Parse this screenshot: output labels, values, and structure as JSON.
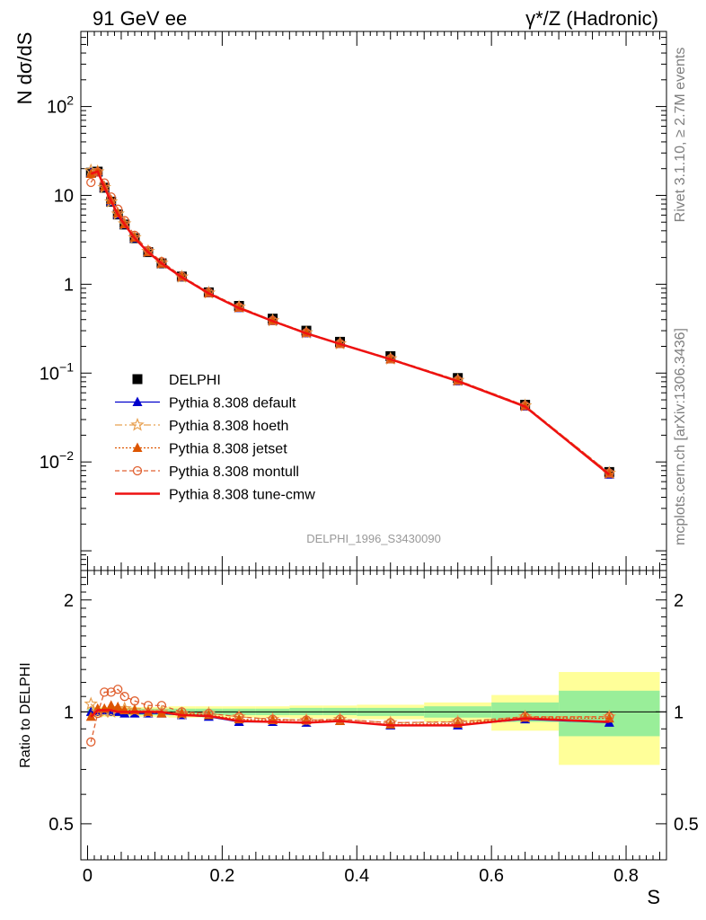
{
  "header": {
    "left_title": "91 GeV ee",
    "right_title": "γ*/Z (Hadronic)"
  },
  "side": {
    "rivet": "Rivet 3.1.10, ≥ 2.7M events",
    "mcplots": "mcplots.cern.ch [arXiv:1306.3436]"
  },
  "watermark": "DELPHI_1996_S3430090",
  "chart_data": [
    {
      "type": "line",
      "panel": "main",
      "ylabel": "N dσ/dS",
      "xlabel": "",
      "yscale": "log",
      "ylim": [
        0.0006,
        700
      ],
      "xlim": [
        -0.01,
        0.86
      ],
      "y_tick_labels": [
        "10^-2",
        "10^-1",
        "1",
        "10",
        "10^2"
      ],
      "legend_position": "middle-left",
      "x": [
        0.005,
        0.015,
        0.025,
        0.035,
        0.045,
        0.055,
        0.07,
        0.09,
        0.11,
        0.14,
        0.18,
        0.225,
        0.275,
        0.325,
        0.375,
        0.45,
        0.55,
        0.65,
        0.775
      ],
      "series": [
        {
          "name": "DELPHI",
          "color": "#000000",
          "marker": "square",
          "values": [
            18,
            18.5,
            12.2,
            8.5,
            6.1,
            4.7,
            3.3,
            2.3,
            1.72,
            1.22,
            0.81,
            0.57,
            0.41,
            0.3,
            0.225,
            0.155,
            0.088,
            0.044,
            0.0077
          ]
        },
        {
          "name": "Pythia 8.308 default",
          "color": "#0000cc",
          "marker": "triangle",
          "dash": "",
          "values": [
            18,
            18.5,
            12.3,
            8.5,
            6.1,
            4.7,
            3.3,
            2.3,
            1.7,
            1.2,
            0.79,
            0.54,
            0.385,
            0.28,
            0.213,
            0.143,
            0.081,
            0.042,
            0.0072
          ]
        },
        {
          "name": "Pythia 8.308 hoeth",
          "color": "#e8a050",
          "marker": "star",
          "dash": "8,3,2,3",
          "values": [
            19,
            18.5,
            12.3,
            8.5,
            6.2,
            4.8,
            3.35,
            2.35,
            1.73,
            1.21,
            0.8,
            0.555,
            0.39,
            0.285,
            0.215,
            0.145,
            0.083,
            0.043,
            0.0075
          ]
        },
        {
          "name": "Pythia 8.308 jetset",
          "color": "#dd5500",
          "marker": "filled-triangle",
          "dash": "2,2",
          "values": [
            17.5,
            18.8,
            12.5,
            8.9,
            6.3,
            4.75,
            3.35,
            2.3,
            1.71,
            1.21,
            0.795,
            0.545,
            0.39,
            0.285,
            0.213,
            0.143,
            0.082,
            0.0425,
            0.0074
          ]
        },
        {
          "name": "Pythia 8.308 montull",
          "color": "#e06030",
          "marker": "circle",
          "dash": "5,3",
          "values": [
            14,
            18.3,
            13.8,
            9.6,
            7,
            5.2,
            3.55,
            2.4,
            1.8,
            1.23,
            0.81,
            0.555,
            0.39,
            0.285,
            0.215,
            0.145,
            0.083,
            0.043,
            0.0075
          ]
        },
        {
          "name": "Pythia 8.308 tune-cmw",
          "color": "#ee1111",
          "marker": "line",
          "dash": "",
          "values": [
            17.5,
            18.6,
            12.3,
            8.6,
            6.1,
            4.7,
            3.3,
            2.3,
            1.72,
            1.2,
            0.79,
            0.54,
            0.385,
            0.28,
            0.213,
            0.143,
            0.081,
            0.042,
            0.0072
          ]
        }
      ]
    },
    {
      "type": "line",
      "panel": "ratio",
      "ylabel": "Ratio to DELPHI",
      "xlabel": "S",
      "yscale": "log",
      "ylim": [
        0.4,
        2.4
      ],
      "xlim": [
        -0.01,
        0.86
      ],
      "y_tick_labels": [
        "0.5",
        "1",
        "2"
      ],
      "x_tick_labels": [
        "0",
        "0.2",
        "0.4",
        "0.6",
        "0.8"
      ],
      "x_ticks": [
        0,
        0.2,
        0.4,
        0.6,
        0.8
      ],
      "reference": 1,
      "bands": [
        {
          "x0": 0.0,
          "x1": 0.01,
          "stat_lo": 0.98,
          "stat_hi": 1.02,
          "tot_lo": 0.97,
          "tot_hi": 1.03
        },
        {
          "x0": 0.01,
          "x1": 0.02,
          "stat_lo": 0.98,
          "stat_hi": 1.02,
          "tot_lo": 0.97,
          "tot_hi": 1.03
        },
        {
          "x0": 0.02,
          "x1": 0.03,
          "stat_lo": 0.98,
          "stat_hi": 1.02,
          "tot_lo": 0.97,
          "tot_hi": 1.03
        },
        {
          "x0": 0.03,
          "x1": 0.04,
          "stat_lo": 0.98,
          "stat_hi": 1.02,
          "tot_lo": 0.97,
          "tot_hi": 1.03
        },
        {
          "x0": 0.04,
          "x1": 0.05,
          "stat_lo": 0.98,
          "stat_hi": 1.02,
          "tot_lo": 0.97,
          "tot_hi": 1.03
        },
        {
          "x0": 0.05,
          "x1": 0.06,
          "stat_lo": 0.98,
          "stat_hi": 1.02,
          "tot_lo": 0.97,
          "tot_hi": 1.03
        },
        {
          "x0": 0.06,
          "x1": 0.08,
          "stat_lo": 0.98,
          "stat_hi": 1.02,
          "tot_lo": 0.97,
          "tot_hi": 1.03
        },
        {
          "x0": 0.08,
          "x1": 0.1,
          "stat_lo": 0.98,
          "stat_hi": 1.02,
          "tot_lo": 0.97,
          "tot_hi": 1.03
        },
        {
          "x0": 0.1,
          "x1": 0.12,
          "stat_lo": 0.98,
          "stat_hi": 1.02,
          "tot_lo": 0.97,
          "tot_hi": 1.03
        },
        {
          "x0": 0.12,
          "x1": 0.16,
          "stat_lo": 0.98,
          "stat_hi": 1.02,
          "tot_lo": 0.965,
          "tot_hi": 1.035
        },
        {
          "x0": 0.16,
          "x1": 0.2,
          "stat_lo": 0.98,
          "stat_hi": 1.02,
          "tot_lo": 0.965,
          "tot_hi": 1.035
        },
        {
          "x0": 0.2,
          "x1": 0.25,
          "stat_lo": 0.98,
          "stat_hi": 1.02,
          "tot_lo": 0.965,
          "tot_hi": 1.035
        },
        {
          "x0": 0.25,
          "x1": 0.3,
          "stat_lo": 0.98,
          "stat_hi": 1.02,
          "tot_lo": 0.965,
          "tot_hi": 1.035
        },
        {
          "x0": 0.3,
          "x1": 0.35,
          "stat_lo": 0.98,
          "stat_hi": 1.025,
          "tot_lo": 0.96,
          "tot_hi": 1.04
        },
        {
          "x0": 0.35,
          "x1": 0.4,
          "stat_lo": 0.98,
          "stat_hi": 1.025,
          "tot_lo": 0.96,
          "tot_hi": 1.04
        },
        {
          "x0": 0.4,
          "x1": 0.5,
          "stat_lo": 0.975,
          "stat_hi": 1.025,
          "tot_lo": 0.955,
          "tot_hi": 1.045
        },
        {
          "x0": 0.5,
          "x1": 0.6,
          "stat_lo": 0.965,
          "stat_hi": 1.035,
          "tot_lo": 0.94,
          "tot_hi": 1.06
        },
        {
          "x0": 0.6,
          "x1": 0.7,
          "stat_lo": 0.94,
          "stat_hi": 1.06,
          "tot_lo": 0.89,
          "tot_hi": 1.11
        },
        {
          "x0": 0.7,
          "x1": 0.85,
          "stat_lo": 0.86,
          "stat_hi": 1.14,
          "tot_lo": 0.72,
          "tot_hi": 1.28
        }
      ],
      "band_colors": {
        "stat": "#99ee99",
        "total": "#ffff99"
      },
      "x": [
        0.005,
        0.015,
        0.025,
        0.035,
        0.045,
        0.055,
        0.07,
        0.09,
        0.11,
        0.14,
        0.18,
        0.225,
        0.275,
        0.325,
        0.375,
        0.45,
        0.55,
        0.65,
        0.775
      ],
      "series": [
        {
          "name": "Pythia 8.308 default",
          "color": "#0000cc",
          "marker": "triangle",
          "dash": "",
          "values": [
            1.0,
            1.0,
            1.01,
            1.0,
            1.0,
            0.99,
            0.99,
            0.99,
            0.99,
            0.98,
            0.97,
            0.94,
            0.94,
            0.935,
            0.945,
            0.92,
            0.92,
            0.955,
            0.935
          ]
        },
        {
          "name": "Pythia 8.308 hoeth",
          "color": "#e8a050",
          "marker": "star",
          "dash": "8,3,2,3",
          "values": [
            1.05,
            1.0,
            1.0,
            1.0,
            1.02,
            1.02,
            1.01,
            1.0,
            1.0,
            0.99,
            0.99,
            0.97,
            0.955,
            0.95,
            0.955,
            0.935,
            0.94,
            0.97,
            0.97
          ]
        },
        {
          "name": "Pythia 8.308 jetset",
          "color": "#dd5500",
          "marker": "filled-triangle",
          "dash": "2,2",
          "values": [
            0.97,
            1.02,
            1.02,
            1.04,
            1.03,
            1.01,
            1.01,
            1.0,
            0.99,
            0.99,
            0.98,
            0.955,
            0.95,
            0.95,
            0.945,
            0.925,
            0.93,
            0.965,
            0.96
          ]
        },
        {
          "name": "Pythia 8.308 montull",
          "color": "#e06030",
          "marker": "circle",
          "dash": "5,3",
          "values": [
            0.83,
            0.99,
            1.13,
            1.13,
            1.15,
            1.1,
            1.07,
            1.04,
            1.04,
            1.0,
            0.99,
            0.97,
            0.955,
            0.95,
            0.955,
            0.935,
            0.94,
            0.97,
            0.97
          ]
        },
        {
          "name": "Pythia 8.308 tune-cmw",
          "color": "#ee1111",
          "marker": "line",
          "dash": "",
          "values": [
            0.97,
            1.01,
            1.01,
            1.01,
            1.0,
            1.0,
            1.0,
            1.0,
            1.0,
            0.98,
            0.975,
            0.945,
            0.94,
            0.935,
            0.945,
            0.92,
            0.92,
            0.96,
            0.94
          ]
        }
      ]
    }
  ]
}
